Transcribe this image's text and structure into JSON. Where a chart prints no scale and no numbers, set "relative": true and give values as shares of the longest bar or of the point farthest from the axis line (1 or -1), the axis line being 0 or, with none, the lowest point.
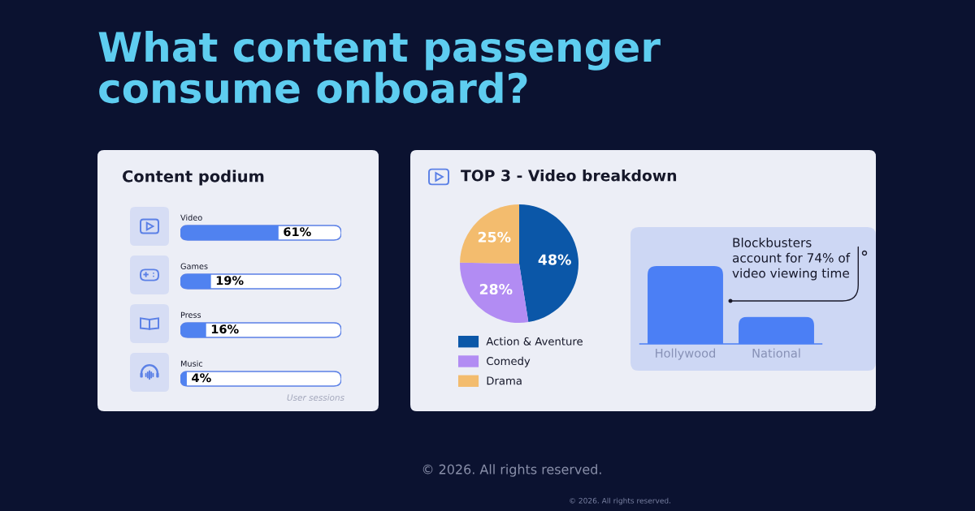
{
  "chart_data": [
    {
      "type": "other",
      "title": "What content passenger\nconsume onboard?",
      "annotations": [
        "© 2026. All rights reserved.",
        "© 2026. All rights reserved."
      ]
    },
    {
      "type": "bar",
      "orientation": "horizontal",
      "title": "Content podium",
      "categories": [
        "Video",
        "Games",
        "Press",
        "Music"
      ],
      "values": [
        61,
        19,
        16,
        4
      ],
      "color": "#5082f0",
      "xlim": [
        0,
        100
      ],
      "tick_labels": false,
      "value_labels": [
        "61%",
        "19%",
        "16%",
        "4%"
      ],
      "annotations": [
        "User sessions"
      ]
    },
    {
      "type": "pie",
      "title": "TOP 3 - Video breakdown",
      "categories": [
        "Action & Aventure",
        "Comedy",
        "Drama"
      ],
      "values": [
        48,
        28,
        25
      ],
      "colors": [
        "#0b57a8",
        "#b28cf3",
        "#f3bc6e"
      ],
      "value_labels": [
        "48%",
        "28%",
        "25%"
      ],
      "legend": "bottom"
    },
    {
      "type": "bar",
      "relative": true,
      "categories": [
        "Hollywood",
        "National"
      ],
      "values": [
        1,
        0.35
      ],
      "color": "#4b7ff5",
      "annotations": [
        "Blockbusters\naccount for 74% of\nvideo viewing time"
      ]
    }
  ]
}
